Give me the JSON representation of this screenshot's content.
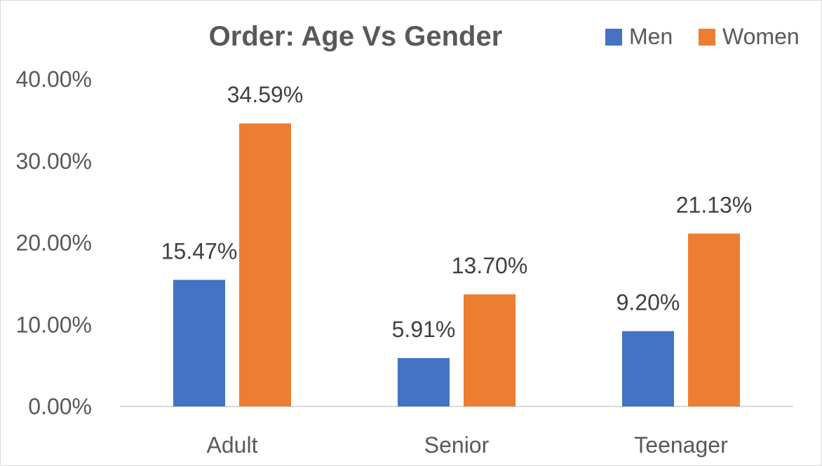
{
  "chart_data": {
    "type": "bar",
    "title": "Order: Age Vs Gender",
    "categories": [
      "Adult",
      "Senior",
      "Teenager"
    ],
    "series": [
      {
        "name": "Men",
        "values": [
          15.47,
          5.91,
          9.2
        ],
        "labels": [
          "15.47%",
          "5.91%",
          "9.20%"
        ],
        "color": "#4472C4"
      },
      {
        "name": "Women",
        "values": [
          34.59,
          13.7,
          21.13
        ],
        "labels": [
          "34.59%",
          "13.70%",
          "21.13%"
        ],
        "color": "#ED7D31"
      }
    ],
    "ylim": [
      0,
      40
    ],
    "yticks": [
      "0.00%",
      "10.00%",
      "20.00%",
      "30.00%",
      "40.00%"
    ],
    "grid": false,
    "legend_position": "top-right"
  }
}
